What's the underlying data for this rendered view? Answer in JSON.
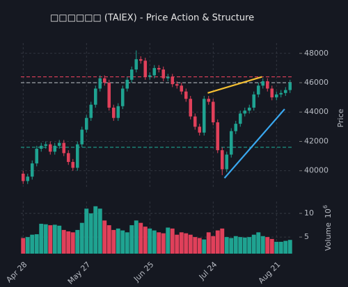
{
  "chart_data": {
    "type": "candlestick",
    "title": "□□□□□□ (TAIEX) - Price Action & Structure",
    "ylabel": "Price",
    "volume_label": "Volume",
    "volume_exponent": {
      "base": "10",
      "power": "6"
    },
    "categories": [
      "Apr 28",
      null,
      null,
      null,
      null,
      null,
      null,
      null,
      null,
      null,
      null,
      null,
      null,
      null,
      "May 27",
      null,
      null,
      null,
      null,
      null,
      null,
      null,
      null,
      null,
      null,
      null,
      null,
      null,
      "Jun 25",
      null,
      null,
      null,
      null,
      null,
      null,
      null,
      null,
      null,
      null,
      null,
      null,
      null,
      "Jul 24",
      null,
      null,
      null,
      null,
      null,
      null,
      null,
      null,
      null,
      null,
      null,
      null,
      null,
      "Aug 21",
      null,
      null,
      null
    ],
    "open": [
      39800,
      39300,
      39600,
      40500,
      41500,
      41700,
      41800,
      41300,
      41700,
      41900,
      41200,
      40600,
      40200,
      41800,
      42800,
      43600,
      44500,
      45600,
      46300,
      46000,
      44300,
      43600,
      44400,
      45600,
      46200,
      46900,
      47600,
      47500,
      46400,
      46500,
      47000,
      46900,
      46300,
      46400,
      45900,
      45800,
      45400,
      44900,
      43700,
      43000,
      42600,
      44900,
      44700,
      43300,
      41400,
      40100,
      41100,
      42700,
      43200,
      43900,
      44100,
      44300,
      45200,
      45800,
      46100,
      45600,
      45000,
      45200,
      45300,
      45500
    ],
    "high": [
      40000,
      39800,
      40700,
      41700,
      41900,
      42000,
      42000,
      41900,
      42100,
      42100,
      41400,
      40800,
      42000,
      43000,
      43800,
      44700,
      45800,
      46500,
      46500,
      46200,
      44500,
      44600,
      45800,
      46400,
      47100,
      48200,
      47800,
      47700,
      46700,
      47200,
      47200,
      47100,
      46600,
      46600,
      46100,
      46000,
      45600,
      45100,
      43900,
      43200,
      45100,
      45100,
      44900,
      43500,
      41600,
      41300,
      42900,
      43400,
      44100,
      44300,
      44500,
      45400,
      46000,
      46300,
      46300,
      45800,
      45400,
      45500,
      45700,
      46200
    ],
    "low": [
      39100,
      39100,
      39400,
      40300,
      41300,
      41500,
      41100,
      41100,
      41500,
      41000,
      40400,
      40000,
      40000,
      41600,
      42600,
      43400,
      44300,
      45400,
      45800,
      44100,
      43400,
      43400,
      44200,
      45400,
      46000,
      46700,
      47300,
      46200,
      46200,
      46300,
      46700,
      46100,
      46100,
      45700,
      45600,
      45200,
      44700,
      43500,
      42800,
      42400,
      42400,
      44500,
      43100,
      41200,
      39700,
      39900,
      40900,
      42500,
      43000,
      43700,
      43900,
      44100,
      45000,
      45600,
      45400,
      44800,
      44800,
      45000,
      45100,
      45300
    ],
    "close": [
      39300,
      39600,
      40500,
      41500,
      41700,
      41800,
      41300,
      41700,
      41900,
      41200,
      40600,
      40200,
      41800,
      42800,
      43600,
      44500,
      45600,
      46300,
      46000,
      44300,
      43600,
      44400,
      45600,
      46200,
      46900,
      47600,
      47500,
      46400,
      46500,
      47000,
      46900,
      46300,
      46400,
      45900,
      45800,
      45400,
      44900,
      43700,
      43000,
      42600,
      44900,
      44700,
      43300,
      41400,
      40100,
      41100,
      42700,
      43200,
      43900,
      44100,
      44300,
      45200,
      45800,
      46100,
      45600,
      45000,
      45200,
      45300,
      45500,
      46000
    ],
    "volume": [
      4.8,
      5.0,
      5.5,
      5.6,
      7.8,
      7.7,
      7.5,
      7.6,
      7.4,
      6.5,
      6.2,
      6.0,
      6.5,
      8.0,
      11.0,
      10.0,
      11.5,
      11.0,
      8.5,
      7.5,
      6.5,
      6.8,
      6.4,
      6.0,
      7.5,
      8.5,
      8.0,
      7.2,
      6.8,
      6.4,
      6.0,
      5.8,
      7.0,
      6.8,
      5.5,
      6.0,
      5.8,
      5.5,
      5.0,
      4.8,
      4.5,
      6.0,
      5.2,
      6.4,
      6.8,
      5.0,
      4.8,
      5.2,
      5.0,
      4.9,
      5.0,
      5.5,
      6.0,
      5.2,
      5.0,
      4.6,
      4.0,
      4.0,
      4.2,
      4.4
    ],
    "up_color": "#1fa391",
    "down_color": "#e0405a",
    "ylim": [
      38850,
      48700
    ],
    "yticks": [
      40000,
      42000,
      44000,
      46000,
      48000
    ],
    "volume_ylim": [
      1.5,
      12.5
    ],
    "volume_yticks": [
      5,
      10
    ],
    "hlines": [
      {
        "value": 46400,
        "color": "#e0405a"
      },
      {
        "value": 46000,
        "color": "#a0a4ab"
      },
      {
        "value": 41600,
        "color": "#1fa391"
      }
    ],
    "trendlines": [
      {
        "x": [
          40.8,
          52.8
        ],
        "y": [
          45300,
          46400
        ],
        "color": "#f5c033"
      },
      {
        "x": [
          44.5,
          57.8
        ],
        "y": [
          39500,
          44200
        ],
        "color": "#3aa8f0"
      }
    ],
    "grid": true
  }
}
